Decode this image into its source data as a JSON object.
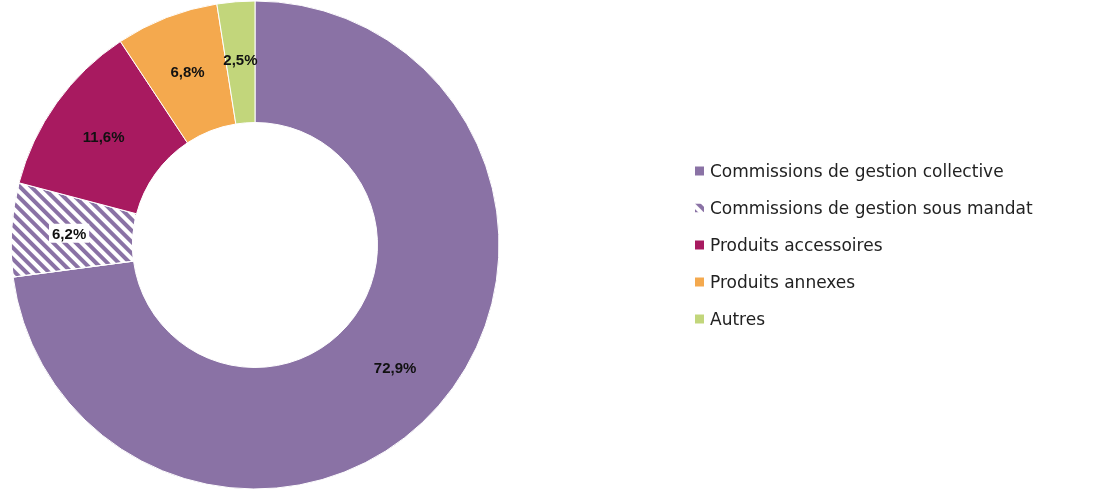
{
  "chart_data": {
    "type": "donut",
    "categories": [
      "Commissions de gestion collective",
      "Commissions de gestion sous mandat",
      "Produits accessoires",
      "Produits annexes",
      "Autres"
    ],
    "values": [
      72.9,
      6.2,
      11.6,
      6.8,
      2.5
    ],
    "value_labels": [
      "72,9%",
      "6,2%",
      "11,6%",
      "6,8%",
      "2,5%"
    ],
    "colors": [
      "#8a72a5",
      "#8a72a5",
      "#a81a60",
      "#f4a94e",
      "#c2d67b"
    ],
    "legend": "right"
  }
}
